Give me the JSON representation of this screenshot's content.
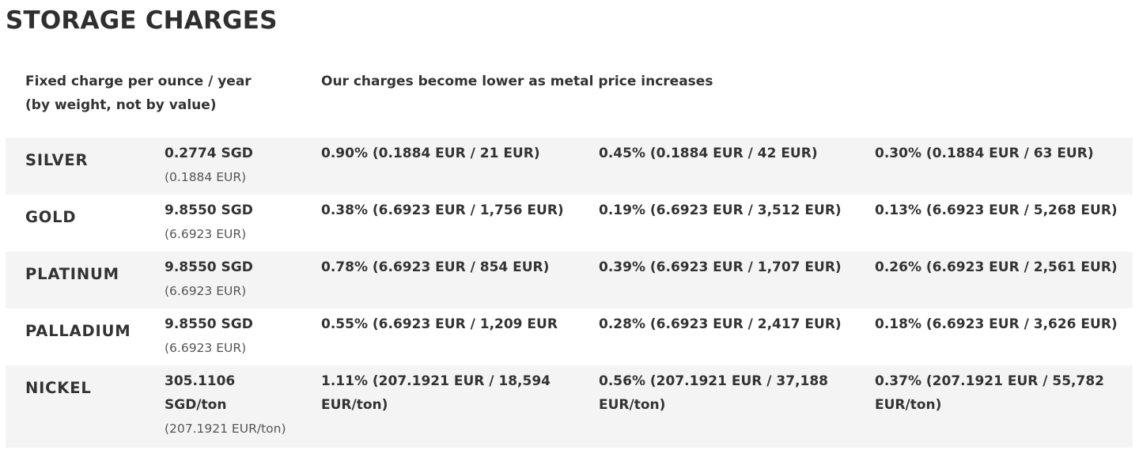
{
  "title": "STORAGE CHARGES",
  "header": {
    "fixed_line1": "Fixed charge per ounce / year",
    "fixed_line2": "(by weight, not by value)",
    "note": "Our charges become lower as metal price increases"
  },
  "rows": [
    {
      "metal": "SILVER",
      "fixed_main": "0.2774 SGD",
      "fixed_sub": "(0.1884 EUR)",
      "p1": "0.90% (0.1884 EUR / 21 EUR)",
      "p2": "0.45% (0.1884 EUR / 42 EUR)",
      "p3": "0.30% (0.1884 EUR / 63 EUR)"
    },
    {
      "metal": "GOLD",
      "fixed_main": "9.8550 SGD",
      "fixed_sub": "(6.6923 EUR)",
      "p1": "0.38% (6.6923 EUR / 1,756 EUR)",
      "p2": "0.19% (6.6923 EUR / 3,512 EUR)",
      "p3": "0.13% (6.6923 EUR / 5,268 EUR)"
    },
    {
      "metal": "PLATINUM",
      "fixed_main": "9.8550 SGD",
      "fixed_sub": "(6.6923 EUR)",
      "p1": "0.78% (6.6923 EUR / 854 EUR)",
      "p2": "0.39% (6.6923 EUR / 1,707 EUR)",
      "p3": "0.26% (6.6923 EUR / 2,561 EUR)"
    },
    {
      "metal": "PALLADIUM",
      "fixed_main": "9.8550 SGD",
      "fixed_sub": "(6.6923 EUR)",
      "p1": "0.55% (6.6923 EUR / 1,209 EUR",
      "p2": "0.28% (6.6923 EUR / 2,417 EUR)",
      "p3": "0.18% (6.6923 EUR / 3,626 EUR)"
    },
    {
      "metal": "NICKEL",
      "fixed_main": "305.1106 SGD/ton",
      "fixed_sub": "(207.1921 EUR/ton)",
      "p1": "1.11% (207.1921 EUR / 18,594 EUR/ton)",
      "p2": "0.56% (207.1921 EUR / 37,188 EUR/ton)",
      "p3": "0.37% (207.1921 EUR / 55,782 EUR/ton)"
    }
  ],
  "colors": {
    "row_alt_bg": "#f4f4f4",
    "text": "#333333",
    "subtext": "#555555"
  }
}
